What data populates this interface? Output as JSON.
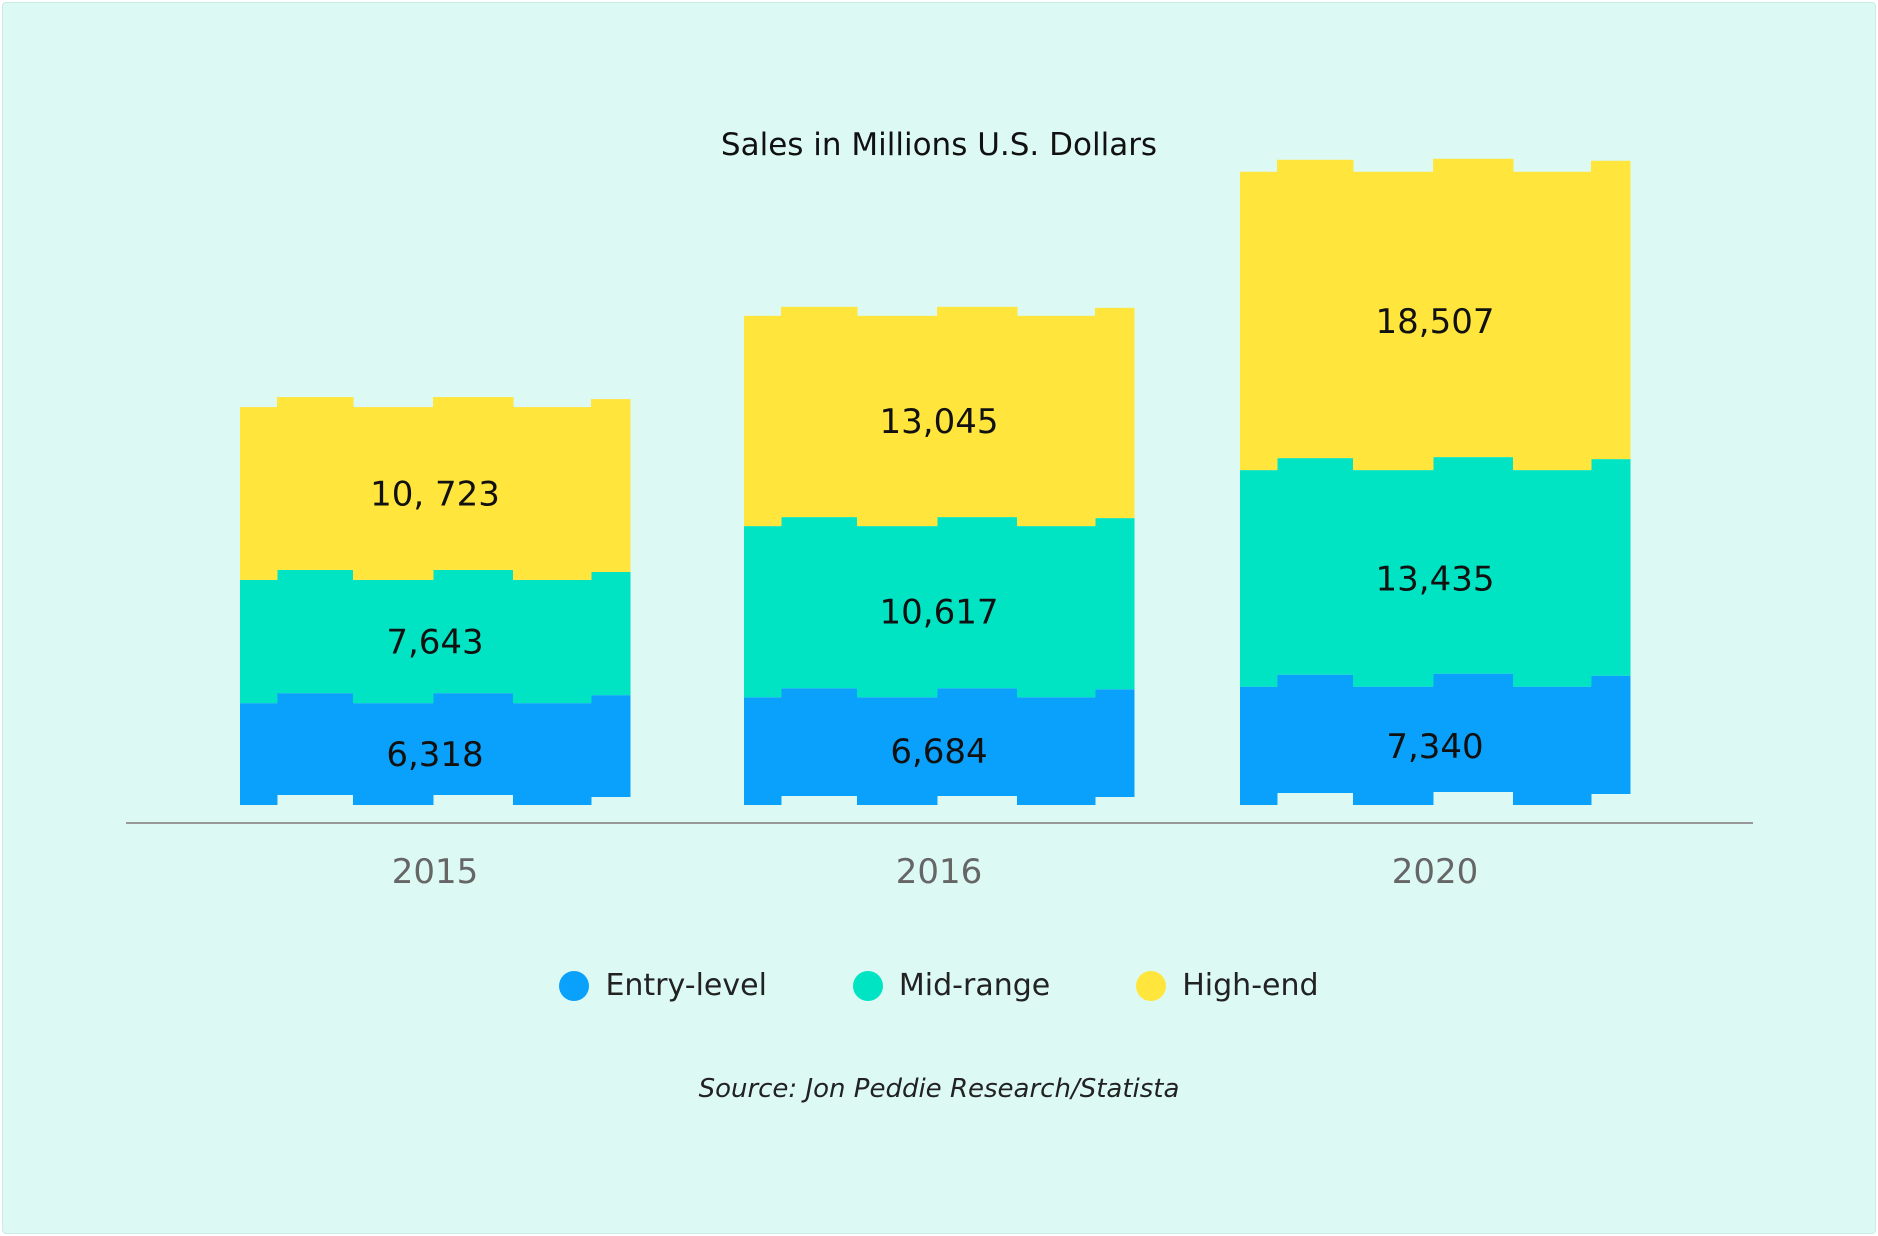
{
  "chart_data": {
    "type": "bar",
    "stacked": true,
    "title": "Sales in Millions U.S. Dollars",
    "categories": [
      "2015",
      "2016",
      "2020"
    ],
    "series": [
      {
        "name": "Entry-level",
        "color": "#0aa1fd",
        "values": [
          6318,
          6684,
          7340
        ],
        "labels": [
          "6,318",
          "6,684",
          "7,340"
        ]
      },
      {
        "name": "Mid-range",
        "color": "#00e4c3",
        "values": [
          7643,
          10617,
          13435
        ],
        "labels": [
          "7,643",
          "10,617",
          "13,435"
        ]
      },
      {
        "name": "High-end",
        "color": "#ffe53c",
        "values": [
          10723,
          13045,
          18507
        ],
        "labels": [
          "10, 723",
          "13,045",
          "18,507"
        ]
      }
    ],
    "legend_position": "bottom",
    "grid": false
  },
  "source": "Source: Jon Peddie Research/Statista"
}
